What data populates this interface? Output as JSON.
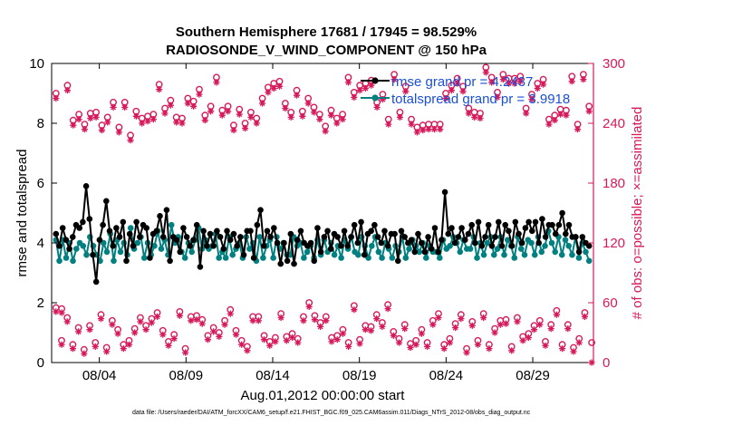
{
  "chart_data": {
    "type": "line",
    "title": "Southern Hemisphere 17681 / 17945 = 98.529%",
    "subtitle": "RADIOSONDE_V_WIND_COMPONENT @ 150 hPa",
    "xlabel": "Aug.01,2012 00:00:00 start",
    "ylabel": "rmse and totalspread",
    "y2label": "# of obs: o=possible; ×=assimilated",
    "footnote": "data file: /Users/raeder/DAI/ATM_forcXX/CAM6_setup/f.e21.FHIST_BGC.f09_025.CAM6assim.011/Diags_NTrS_2012-08/obs_diag_output.nc",
    "xlim": [
      0.75,
      32.0
    ],
    "ylim": [
      0,
      10
    ],
    "y2lim": [
      0,
      300
    ],
    "x_ticks": [
      3.5,
      8.5,
      13.5,
      18.5,
      23.5,
      28.5
    ],
    "x_tick_labels": [
      "08/04",
      "08/09",
      "08/14",
      "08/19",
      "08/24",
      "08/29"
    ],
    "y_ticks": [
      0,
      2,
      4,
      6,
      8,
      10
    ],
    "y_tick_labels": [
      "0",
      "2",
      "4",
      "6",
      "8",
      "10"
    ],
    "y2_ticks": [
      0,
      60,
      120,
      180,
      240,
      300
    ],
    "y2_tick_labels": [
      "0",
      "60",
      "120",
      "180",
      "240",
      "300"
    ],
    "colors": {
      "rmse": "#000000",
      "spread": "#008080",
      "obs": "#d6195a"
    },
    "series": [
      {
        "name": "rmse",
        "legend": "rmse grand pr = 4.2437",
        "values": [
          4.3,
          3.9,
          4.5,
          4.1,
          3.8,
          4.2,
          4.6,
          4.5,
          4.7,
          5.9,
          4.8,
          3.6,
          2.7,
          4.1,
          4.6,
          5.4,
          4.4,
          3.9,
          4.5,
          4.2,
          4.7,
          3.4,
          4.3,
          3.9,
          4.7,
          4.2,
          4.6,
          4.5,
          3.5,
          4.3,
          4.4,
          4.9,
          4.2,
          5.1,
          3.4,
          4.2,
          4.1,
          3.7,
          4.5,
          4.2,
          3.9,
          4.1,
          4.6,
          3.2,
          4.4,
          3.9,
          4.3,
          3.9,
          4.4,
          4.2,
          3.8,
          4.4,
          4.1,
          4.3,
          3.9,
          4.2,
          3.6,
          4.4,
          4.4,
          3.5,
          4.6,
          5.1,
          3.9,
          4.4,
          4.2,
          4.5,
          4.0,
          3.3,
          4.0,
          3.4,
          4.3,
          3.3,
          4.1,
          4.4,
          4.0,
          3.9,
          4.0,
          3.4,
          4.5,
          3.7,
          4.2,
          4.4,
          3.8,
          4.3,
          4.2,
          3.9,
          4.4,
          3.9,
          4.2,
          4.6,
          4.0,
          4.7,
          3.6,
          4.3,
          4.4,
          4.6,
          4.2,
          4.0,
          4.4,
          3.9,
          4.3,
          4.3,
          3.4,
          4.4,
          4.2,
          4.0,
          4.1,
          3.7,
          4.3,
          4.0,
          3.7,
          4.2,
          3.8,
          4.5,
          3.7,
          4.1,
          5.7,
          4.3,
          4.5,
          4.0,
          4.2,
          4.5,
          4.1,
          4.3,
          4.6,
          4.0,
          4.7,
          3.9,
          4.2,
          4.6,
          3.9,
          4.2,
          4.7,
          3.9,
          4.6,
          4.4,
          3.9,
          4.7,
          4.3,
          4.0,
          4.5,
          4.7,
          4.4,
          4.7,
          4.0,
          4.8,
          4.2,
          4.6,
          4.6,
          4.3,
          4.6,
          5.0,
          4.3,
          4.6,
          4.2,
          4.2,
          3.7,
          4.2,
          4.0,
          3.9
        ]
      },
      {
        "name": "totalspread",
        "legend": "totalspread grand pr = 3.9918",
        "values": [
          4.1,
          3.4,
          4.1,
          3.5,
          4.0,
          3.4,
          3.8,
          4.0,
          3.9,
          3.6,
          4.2,
          3.9,
          3.6,
          3.4,
          4.0,
          3.7,
          4.3,
          3.4,
          4.1,
          3.7,
          4.0,
          3.6,
          4.5,
          3.8,
          4.0,
          4.2,
          3.5,
          4.0,
          3.6,
          3.9,
          4.4,
          3.8,
          4.1,
          3.6,
          4.6,
          4.0,
          4.2,
          3.7,
          3.5,
          4.0,
          3.7,
          4.1,
          4.5,
          3.8,
          4.1,
          3.8,
          3.9,
          4.3,
          3.5,
          3.7,
          3.5,
          4.2,
          3.6,
          3.8,
          4.0,
          3.5,
          4.2,
          3.8,
          4.0,
          3.4,
          4.2,
          3.5,
          3.9,
          4.1,
          3.5,
          4.2,
          3.8,
          4.0,
          3.6,
          3.6,
          4.2,
          3.9,
          4.0,
          3.5,
          3.7,
          3.9,
          3.5,
          4.1,
          3.6,
          4.1,
          3.7,
          4.0,
          3.6,
          3.9,
          3.5,
          4.1,
          3.8,
          4.2,
          3.7,
          3.6,
          4.2,
          3.9,
          3.5,
          3.9,
          4.2,
          3.7,
          3.5,
          4.0,
          3.8,
          3.5,
          3.9,
          3.7,
          4.2,
          3.5,
          3.8,
          4.1,
          3.9,
          3.7,
          4.0,
          3.5,
          3.9,
          3.7,
          3.7,
          3.5,
          4.1,
          3.8,
          3.9,
          4.2,
          4.0,
          3.7,
          4.1,
          3.8,
          3.8,
          4.2,
          3.5,
          4.0,
          3.6,
          4.0,
          4.2,
          3.6,
          3.8,
          4.2,
          3.6,
          4.1,
          3.9,
          3.5,
          4.2,
          3.8,
          3.6,
          4.1,
          4.0,
          3.6,
          4.2,
          3.7,
          3.9,
          4.4,
          4.0,
          3.7,
          4.2,
          3.6,
          4.1,
          3.9,
          3.6,
          4.2,
          3.5,
          4.0,
          3.7,
          3.4
        ]
      },
      {
        "name": "obs possible (day)",
        "values": [
          270,
          54,
          278,
          243,
          249,
          239,
          250,
          251,
          238,
          246,
          261,
          236,
          261,
          228,
          252,
          245,
          247,
          249,
          279,
          255,
          263,
          246,
          245,
          265,
          262,
          274,
          248,
          257,
          286,
          253,
          257,
          238,
          254,
          240,
          251,
          245,
          265,
          276,
          280,
          282,
          260,
          251,
          273,
          252,
          265,
          256,
          249,
          237,
          253,
          245,
          249,
          286,
          271,
          278,
          280,
          283,
          261,
          269,
          244,
          289,
          251,
          277,
          244,
          236,
          238,
          239,
          239,
          239,
          270,
          278,
          285,
          277,
          255,
          251,
          250,
          296,
          286,
          271,
          289,
          285,
          285,
          287,
          255,
          269,
          280,
          284,
          244,
          248,
          254,
          253,
          287,
          239,
          289,
          257
        ]
      },
      {
        "name": "obs assimilated (day)",
        "values": [
          265,
          50,
          273,
          238,
          244,
          234,
          245,
          246,
          233,
          241,
          256,
          231,
          256,
          223,
          247,
          240,
          242,
          244,
          274,
          250,
          258,
          241,
          240,
          260,
          257,
          269,
          243,
          252,
          281,
          248,
          252,
          233,
          249,
          235,
          246,
          240,
          260,
          271,
          275,
          277,
          255,
          246,
          268,
          247,
          260,
          251,
          244,
          232,
          248,
          240,
          244,
          281,
          266,
          273,
          275,
          278,
          256,
          264,
          239,
          284,
          246,
          272,
          239,
          231,
          233,
          234,
          234,
          234,
          265,
          273,
          280,
          272,
          250,
          246,
          245,
          291,
          281,
          266,
          284,
          280,
          280,
          282,
          250,
          264,
          275,
          279,
          239,
          243,
          249,
          248,
          282,
          234,
          284,
          252
        ]
      }
    ],
    "obs_low_possible": [
      55,
      22,
      45,
      18,
      35,
      13,
      37,
      20,
      48,
      15,
      42,
      33,
      18,
      22,
      34,
      45,
      37,
      44,
      50,
      32,
      21,
      28,
      51,
      14,
      46,
      47,
      43,
      27,
      35,
      30,
      42,
      53,
      32,
      22,
      16,
      46,
      46,
      27,
      21,
      25,
      49,
      26,
      29,
      24,
      46,
      60,
      47,
      40,
      46,
      25,
      27,
      33,
      20,
      57,
      23,
      37,
      36,
      48,
      40,
      58,
      31,
      24,
      38,
      19,
      22,
      33,
      20,
      42,
      49,
      18,
      24,
      39,
      48,
      14,
      41,
      22,
      49,
      18,
      34,
      42,
      43,
      16,
      45,
      26,
      29,
      37,
      42,
      21,
      38,
      52,
      18,
      38,
      15,
      24,
      50
    ],
    "obs_low_assimilated": [
      51,
      18,
      41,
      14,
      31,
      9,
      33,
      16,
      44,
      11,
      38,
      29,
      14,
      18,
      30,
      41,
      33,
      40,
      46,
      28,
      17,
      24,
      47,
      10,
      42,
      43,
      39,
      23,
      31,
      26,
      38,
      49,
      28,
      18,
      12,
      42,
      42,
      23,
      17,
      21,
      45,
      22,
      25,
      20,
      42,
      56,
      43,
      36,
      42,
      21,
      23,
      29,
      16,
      53,
      19,
      33,
      32,
      44,
      36,
      54,
      27,
      20,
      34,
      15,
      18,
      29,
      16,
      38,
      45,
      14,
      20,
      35,
      44,
      10,
      37,
      18,
      45,
      14,
      30,
      38,
      39,
      12,
      41,
      22,
      25,
      33,
      38,
      17,
      34,
      48,
      14,
      34,
      11,
      20,
      46
    ],
    "obs_last": {
      "possible": 20,
      "assimilated": 0
    }
  }
}
